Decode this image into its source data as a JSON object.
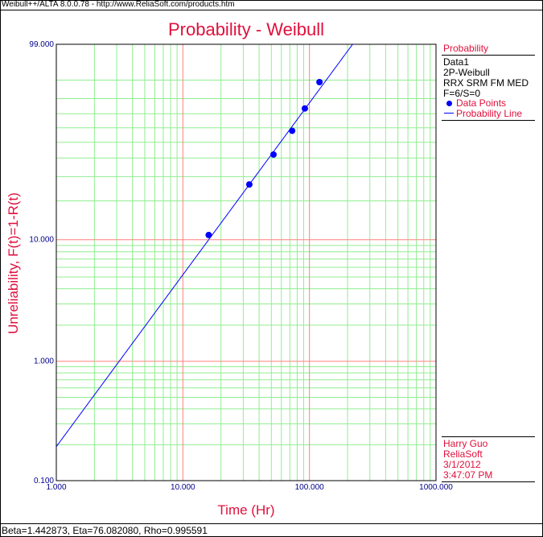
{
  "window": {
    "title": "Weibull++/ALTA 8.0.0.78 - http://www.ReliaSoft.com/products.htm"
  },
  "chart_data": {
    "type": "scatter",
    "title": "Probability - Weibull",
    "xlabel": "Time (Hr)",
    "ylabel": "Unreliability, F(t)=1-R(t)",
    "x_scale": "log",
    "y_scale": "weibull",
    "xlim": [
      1,
      1000
    ],
    "ylim": [
      0.1,
      99
    ],
    "x_tick_labels": [
      "1.000",
      "10.000",
      "100.000",
      "1000.000"
    ],
    "y_tick_labels": [
      "0.100",
      "1.000",
      "10.000",
      "99.000"
    ],
    "grid": true,
    "series": [
      {
        "name": "Data Points",
        "kind": "points",
        "x": [
          16,
          33.5,
          52,
          73,
          92,
          120
        ],
        "y": [
          10.9,
          26.4,
          42.1,
          57.9,
          73.6,
          89.1
        ],
        "color": "#0000ff"
      },
      {
        "name": "Probability Line",
        "kind": "line",
        "beta": 1.442873,
        "eta": 76.08208,
        "color": "#0000ff"
      }
    ],
    "colors": {
      "title": "#e0103c",
      "axis_label": "#e0103c",
      "tick_label": "#00008b",
      "major_grid": "#ff8080",
      "minor_grid": "#90ee90"
    }
  },
  "sidebar": {
    "heading": "Probability",
    "data_name": "Data1",
    "distribution": "2P-Weibull",
    "method": "RRX SRM FM MED",
    "counts": "F=6/S=0",
    "legend_points": "Data Points",
    "legend_line": "Probability Line",
    "user": "Harry Guo",
    "company": "ReliaSoft",
    "date": "3/1/2012",
    "time": "3:47:07 PM"
  },
  "footer": {
    "parameters": "Beta=1.442873, Eta=76.082080, Rho=0.995591"
  }
}
